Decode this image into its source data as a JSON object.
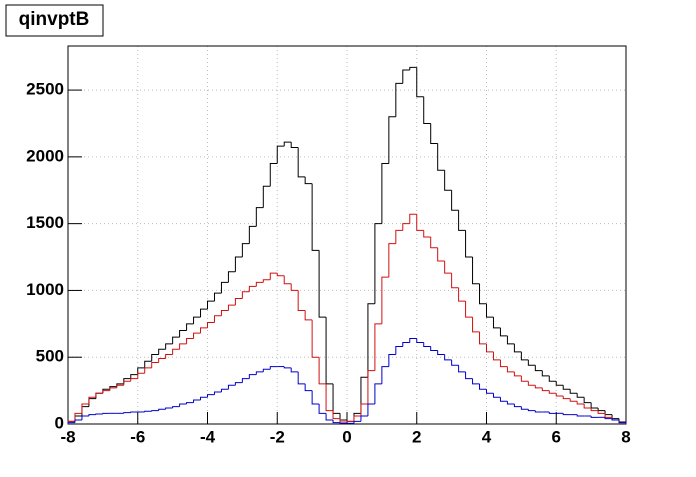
{
  "chart_data": {
    "type": "histogram",
    "title": "qinvptB",
    "bins": [
      -8,
      -7.8,
      -7.6,
      -7.4,
      -7.2,
      -7,
      -6.8,
      -6.6,
      -6.4,
      -6.2,
      -6,
      -5.8,
      -5.6,
      -5.4,
      -5.2,
      -5,
      -4.8,
      -4.6,
      -4.4,
      -4.2,
      -4,
      -3.8,
      -3.6,
      -3.4,
      -3.2,
      -3,
      -2.8,
      -2.6,
      -2.4,
      -2.2,
      -2,
      -1.8,
      -1.6,
      -1.4,
      -1.2,
      -1,
      -0.8,
      -0.6,
      -0.4,
      -0.2,
      0,
      0.2,
      0.4,
      0.6,
      0.8,
      1,
      1.2,
      1.4,
      1.6,
      1.8,
      2,
      2.2,
      2.4,
      2.6,
      2.8,
      3,
      3.2,
      3.4,
      3.6,
      3.8,
      4,
      4.2,
      4.4,
      4.6,
      4.8,
      5,
      5.2,
      5.4,
      5.6,
      5.8,
      6,
      6.2,
      6.4,
      6.6,
      6.8,
      7,
      7.2,
      7.4,
      7.6,
      7.8,
      8
    ],
    "series": [
      {
        "color": "#000000",
        "values": [
          20,
          60,
          130,
          190,
          230,
          260,
          280,
          300,
          340,
          370,
          420,
          470,
          520,
          560,
          600,
          650,
          700,
          750,
          800,
          860,
          920,
          980,
          1060,
          1140,
          1250,
          1350,
          1480,
          1620,
          1780,
          1950,
          2080,
          2110,
          2070,
          1850,
          1800,
          1300,
          800,
          300,
          80,
          30,
          20,
          80,
          350,
          900,
          1500,
          1950,
          2300,
          2550,
          2650,
          2670,
          2450,
          2250,
          2100,
          1900,
          1750,
          1600,
          1450,
          1250,
          1050,
          900,
          800,
          720,
          660,
          600,
          540,
          480,
          440,
          400,
          360,
          320,
          290,
          260,
          230,
          200,
          160,
          120,
          100,
          70,
          40,
          15
        ]
      },
      {
        "color": "#d01010",
        "values": [
          20,
          80,
          150,
          200,
          230,
          250,
          270,
          290,
          320,
          340,
          380,
          420,
          460,
          490,
          520,
          560,
          600,
          640,
          680,
          720,
          760,
          810,
          850,
          890,
          940,
          990,
          1030,
          1060,
          1080,
          1130,
          1110,
          1050,
          1000,
          850,
          780,
          500,
          300,
          100,
          40,
          15,
          20,
          60,
          150,
          400,
          750,
          1100,
          1350,
          1450,
          1500,
          1570,
          1450,
          1400,
          1320,
          1220,
          1130,
          1020,
          920,
          800,
          690,
          600,
          540,
          480,
          430,
          390,
          360,
          320,
          290,
          270,
          250,
          230,
          210,
          190,
          170,
          150,
          120,
          100,
          80,
          50,
          30,
          10
        ]
      },
      {
        "color": "#0000cc",
        "values": [
          10,
          30,
          60,
          70,
          75,
          80,
          80,
          80,
          85,
          90,
          90,
          95,
          100,
          110,
          120,
          130,
          150,
          160,
          180,
          200,
          220,
          240,
          260,
          290,
          310,
          340,
          370,
          390,
          410,
          430,
          430,
          420,
          390,
          300,
          250,
          150,
          80,
          30,
          10,
          5,
          5,
          20,
          60,
          150,
          300,
          430,
          520,
          580,
          610,
          640,
          610,
          580,
          550,
          520,
          480,
          440,
          390,
          340,
          300,
          260,
          230,
          200,
          170,
          150,
          130,
          110,
          100,
          90,
          90,
          80,
          80,
          70,
          70,
          60,
          60,
          50,
          50,
          40,
          30,
          10
        ]
      }
    ],
    "xlim": [
      -8,
      8
    ],
    "xticks": [
      -8,
      -6,
      -4,
      -2,
      0,
      2,
      4,
      6,
      8
    ],
    "ylim": [
      0,
      2830
    ],
    "yticks": [
      0,
      500,
      1000,
      1500,
      2000,
      2500
    ],
    "grid": true
  }
}
